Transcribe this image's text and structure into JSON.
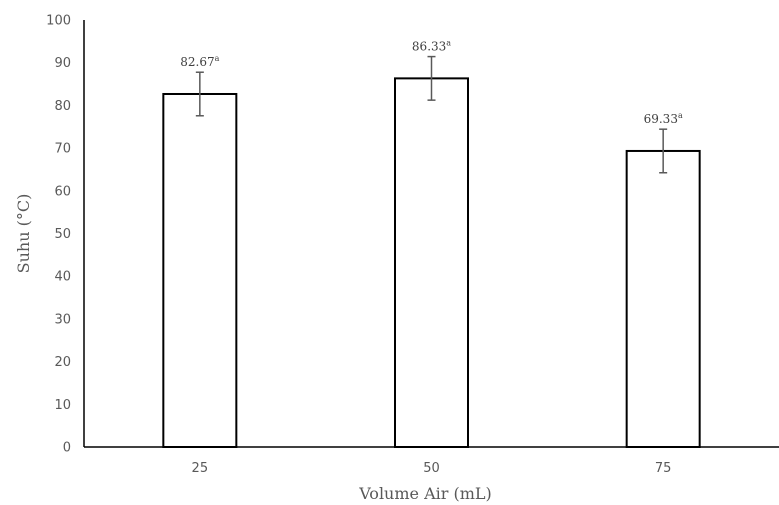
{
  "chart_data": {
    "type": "bar",
    "title": "",
    "xlabel": "Volume Air (mL)",
    "ylabel": "Suhu (°C)",
    "categories": [
      "25",
      "50",
      "75"
    ],
    "values": [
      82.67,
      86.33,
      69.33
    ],
    "error": [
      5.1,
      5.1,
      5.1
    ],
    "data_labels": [
      {
        "value": "82.67",
        "sup": "a"
      },
      {
        "value": "86.33",
        "sup": "a"
      },
      {
        "value": "69.33",
        "sup": "a"
      }
    ],
    "ylim": [
      0,
      100
    ],
    "yticks": [
      "0",
      "10",
      "20",
      "30",
      "40",
      "50",
      "60",
      "70",
      "80",
      "90",
      "100"
    ],
    "grid": false,
    "legend": "none",
    "colors": {
      "bar_fill": "#ffffff",
      "bar_stroke": "#000000",
      "axis": "#000000",
      "error_bar": "#595959",
      "text": "#595959"
    }
  }
}
